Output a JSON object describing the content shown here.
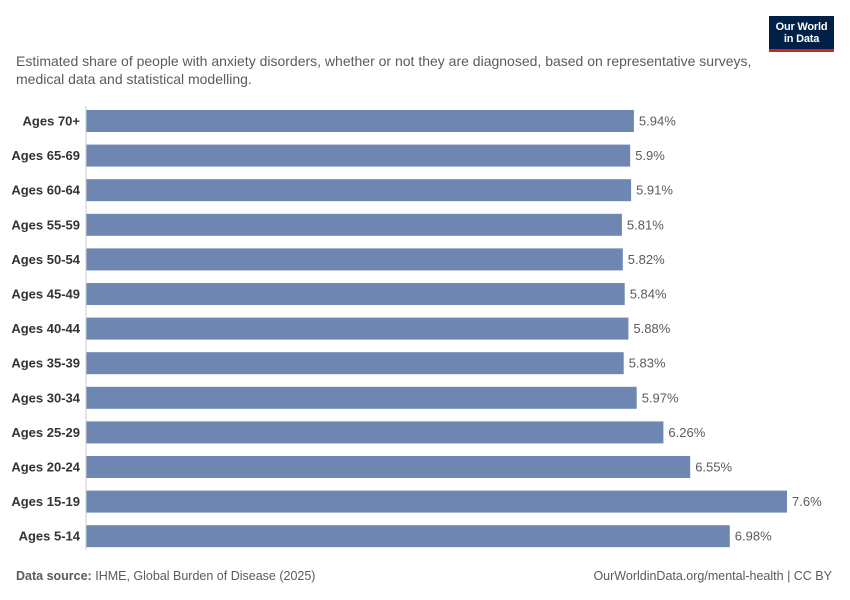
{
  "logo": {
    "line1": "Our World",
    "line2": "in Data"
  },
  "subtitle": "Estimated share of people with anxiety disorders, whether or not they are diagnosed, based on representative surveys, medical data and statistical modelling.",
  "footer": {
    "source_label": "Data source:",
    "source_text": "IHME, Global Burden of Disease (2025)",
    "url": "OurWorldinData.org/mental-health | CC BY"
  },
  "colors": {
    "bar": "#6d87b2",
    "axis": "#cccccc",
    "label": "#333333",
    "value": "#5b5b5b"
  },
  "chart_data": {
    "type": "bar",
    "orientation": "horizontal",
    "categories": [
      "Ages 70+",
      "Ages 65-69",
      "Ages 60-64",
      "Ages 55-59",
      "Ages 50-54",
      "Ages 45-49",
      "Ages 40-44",
      "Ages 35-39",
      "Ages 30-34",
      "Ages 25-29",
      "Ages 20-24",
      "Ages 15-19",
      "Ages 5-14"
    ],
    "values": [
      5.94,
      5.9,
      5.91,
      5.81,
      5.82,
      5.84,
      5.88,
      5.83,
      5.97,
      6.26,
      6.55,
      7.6,
      6.98
    ],
    "value_labels": [
      "5.94%",
      "5.9%",
      "5.91%",
      "5.81%",
      "5.82%",
      "5.84%",
      "5.88%",
      "5.83%",
      "5.97%",
      "6.26%",
      "6.55%",
      "7.6%",
      "6.98%"
    ],
    "xlim": [
      0,
      7.6
    ],
    "grid": false
  }
}
